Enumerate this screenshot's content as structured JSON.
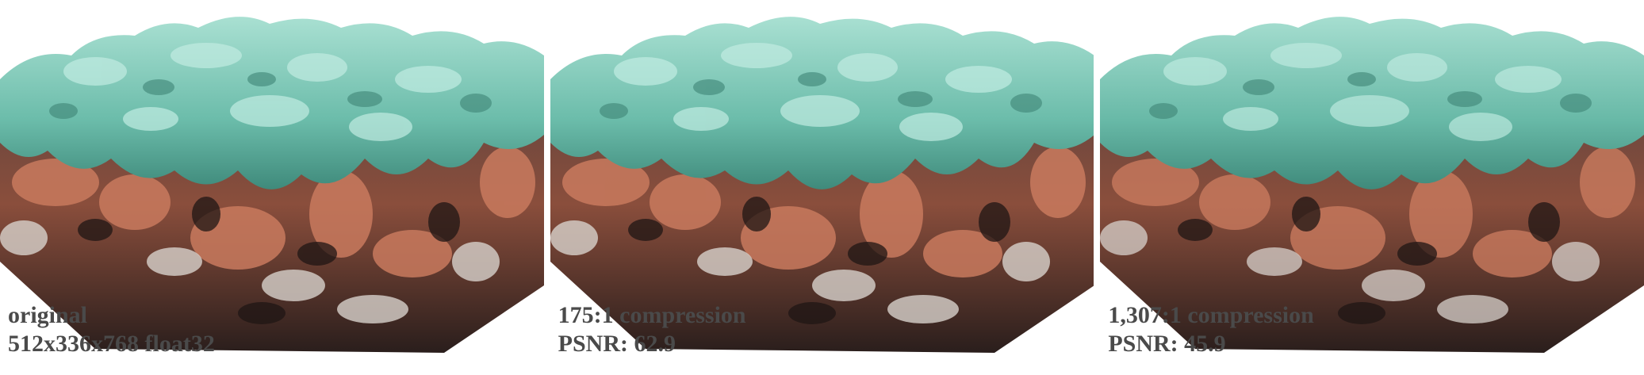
{
  "panels": [
    {
      "line1": "original",
      "line2": "512x336x768 float32"
    },
    {
      "line1": "175:1 compression",
      "line2": "PSNR: 62.9"
    },
    {
      "line1": "1,307:1 compression",
      "line2": "PSNR: 45.9"
    }
  ],
  "colors": {
    "teal_top": "#8fd4c4",
    "teal_mid": "#5fb4a2",
    "teal_dark": "#3d8475",
    "copper": "#c97a5e",
    "copper_dark": "#7a3a2a",
    "silver": "#bdb7b3",
    "shadow": "#1f1614",
    "caption": "#4a4a4a"
  }
}
